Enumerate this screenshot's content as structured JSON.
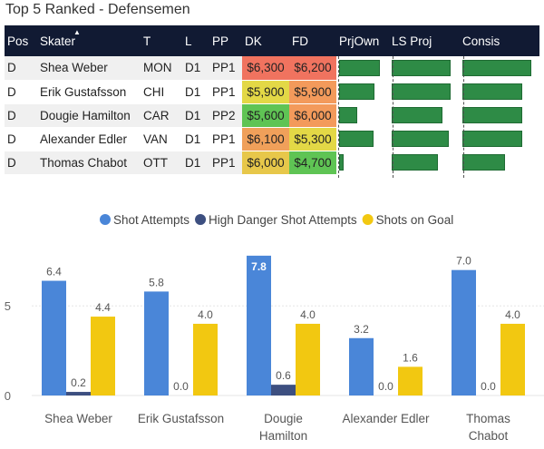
{
  "title": "Top 5 Ranked - Defensemen",
  "table": {
    "columns": [
      "Pos",
      "Skater",
      "T",
      "L",
      "PP",
      "DK",
      "FD",
      "PrjOwn",
      "LS Proj",
      "Consis"
    ],
    "sort_indicator": "▲",
    "rows": [
      {
        "pos": "D",
        "skater": "Shea Weber",
        "team": "MON",
        "line": "D1",
        "pp": "PP1",
        "dk": "$6,300",
        "fd": "$6,200",
        "dk_color": "#f0735f",
        "fd_color": "#f0735f",
        "prjown": 0.9,
        "lsproj": 0.95,
        "consis": 0.98
      },
      {
        "pos": "D",
        "skater": "Erik Gustafsson",
        "team": "CHI",
        "line": "D1",
        "pp": "PP1",
        "dk": "$5,900",
        "fd": "$5,900",
        "dk_color": "#e3d846",
        "fd_color": "#f39a5b",
        "prjown": 0.78,
        "lsproj": 0.95,
        "consis": 0.85
      },
      {
        "pos": "D",
        "skater": "Dougie Hamilton",
        "team": "CAR",
        "line": "D1",
        "pp": "PP2",
        "dk": "$5,600",
        "fd": "$6,000",
        "dk_color": "#5fc454",
        "fd_color": "#f39a5b",
        "prjown": 0.4,
        "lsproj": 0.82,
        "consis": 0.85
      },
      {
        "pos": "D",
        "skater": "Alexander Edler",
        "team": "VAN",
        "line": "D1",
        "pp": "PP1",
        "dk": "$6,100",
        "fd": "$5,300",
        "dk_color": "#f0a05a",
        "fd_color": "#e3d846",
        "prjown": 0.75,
        "lsproj": 0.92,
        "consis": 0.85
      },
      {
        "pos": "D",
        "skater": "Thomas Chabot",
        "team": "OTT",
        "line": "D1",
        "pp": "PP1",
        "dk": "$6,000",
        "fd": "$4,700",
        "dk_color": "#e7c74a",
        "fd_color": "#5fc454",
        "prjown": 0.1,
        "lsproj": 0.75,
        "consis": 0.6
      }
    ]
  },
  "chart_data": {
    "type": "bar",
    "categories": [
      "Shea Weber",
      "Erik Gustafsson",
      "Dougie Hamilton",
      "Alexander Edler",
      "Thomas Chabot"
    ],
    "category_lines": [
      [
        "Shea Weber"
      ],
      [
        "Erik Gustafsson"
      ],
      [
        "Dougie",
        "Hamilton"
      ],
      [
        "Alexander Edler"
      ],
      [
        "Thomas",
        "Chabot"
      ]
    ],
    "series": [
      {
        "name": "Shot Attempts",
        "color": "#4a86d8",
        "values": [
          6.4,
          5.8,
          7.8,
          3.2,
          7.0
        ]
      },
      {
        "name": "High Danger Shot Attempts",
        "color": "#3d4f80",
        "values": [
          0.2,
          0.0,
          0.6,
          0.0,
          0.0
        ]
      },
      {
        "name": "Shots on Goal",
        "color": "#f2c811",
        "values": [
          4.4,
          4.0,
          4.0,
          1.6,
          4.0
        ]
      }
    ],
    "value_labels": [
      [
        "6.4",
        "5.8",
        "7.8",
        "3.2",
        "7.0"
      ],
      [
        "0.2",
        "0.0",
        "0.6",
        "0.0",
        "0.0"
      ],
      [
        "4.4",
        "4.0",
        "4.0",
        "1.6",
        "4.0"
      ]
    ],
    "yticks": [
      0,
      5
    ],
    "ytick_labels": [
      "0",
      "5"
    ],
    "ylim": [
      0,
      8.3
    ],
    "legend_position": "top-center",
    "grid": true
  }
}
